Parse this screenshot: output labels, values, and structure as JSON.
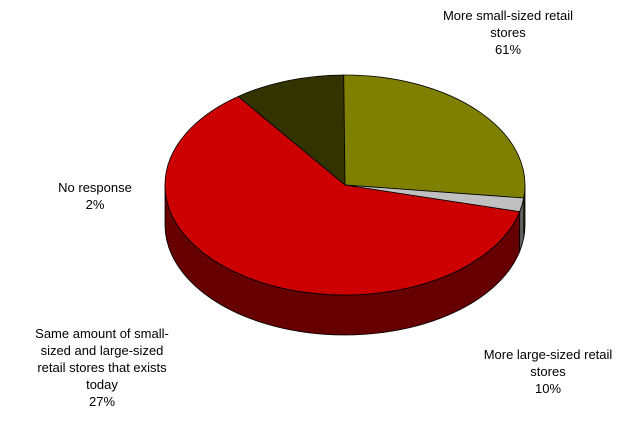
{
  "chart_data": {
    "type": "pie",
    "style": "3d",
    "legend": "none",
    "slices": [
      {
        "label_lines": [
          "More small-sized retail",
          "stores"
        ],
        "value": 61,
        "value_label": "61%",
        "color": "#cc0000",
        "side_color": "#660000"
      },
      {
        "label_lines": [
          "More large-sized retail",
          "stores"
        ],
        "value": 10,
        "value_label": "10%",
        "color": "#333300",
        "side_color": "#1a1a00"
      },
      {
        "label_lines": [
          "Same amount of small-",
          "sized and large-sized",
          "retail stores that exists",
          "today"
        ],
        "value": 27,
        "value_label": "27%",
        "color": "#808000",
        "side_color": "#404000"
      },
      {
        "label_lines": [
          "No response"
        ],
        "value": 2,
        "value_label": "2%",
        "color": "#c0c0c0",
        "side_color": "#606060"
      }
    ]
  }
}
